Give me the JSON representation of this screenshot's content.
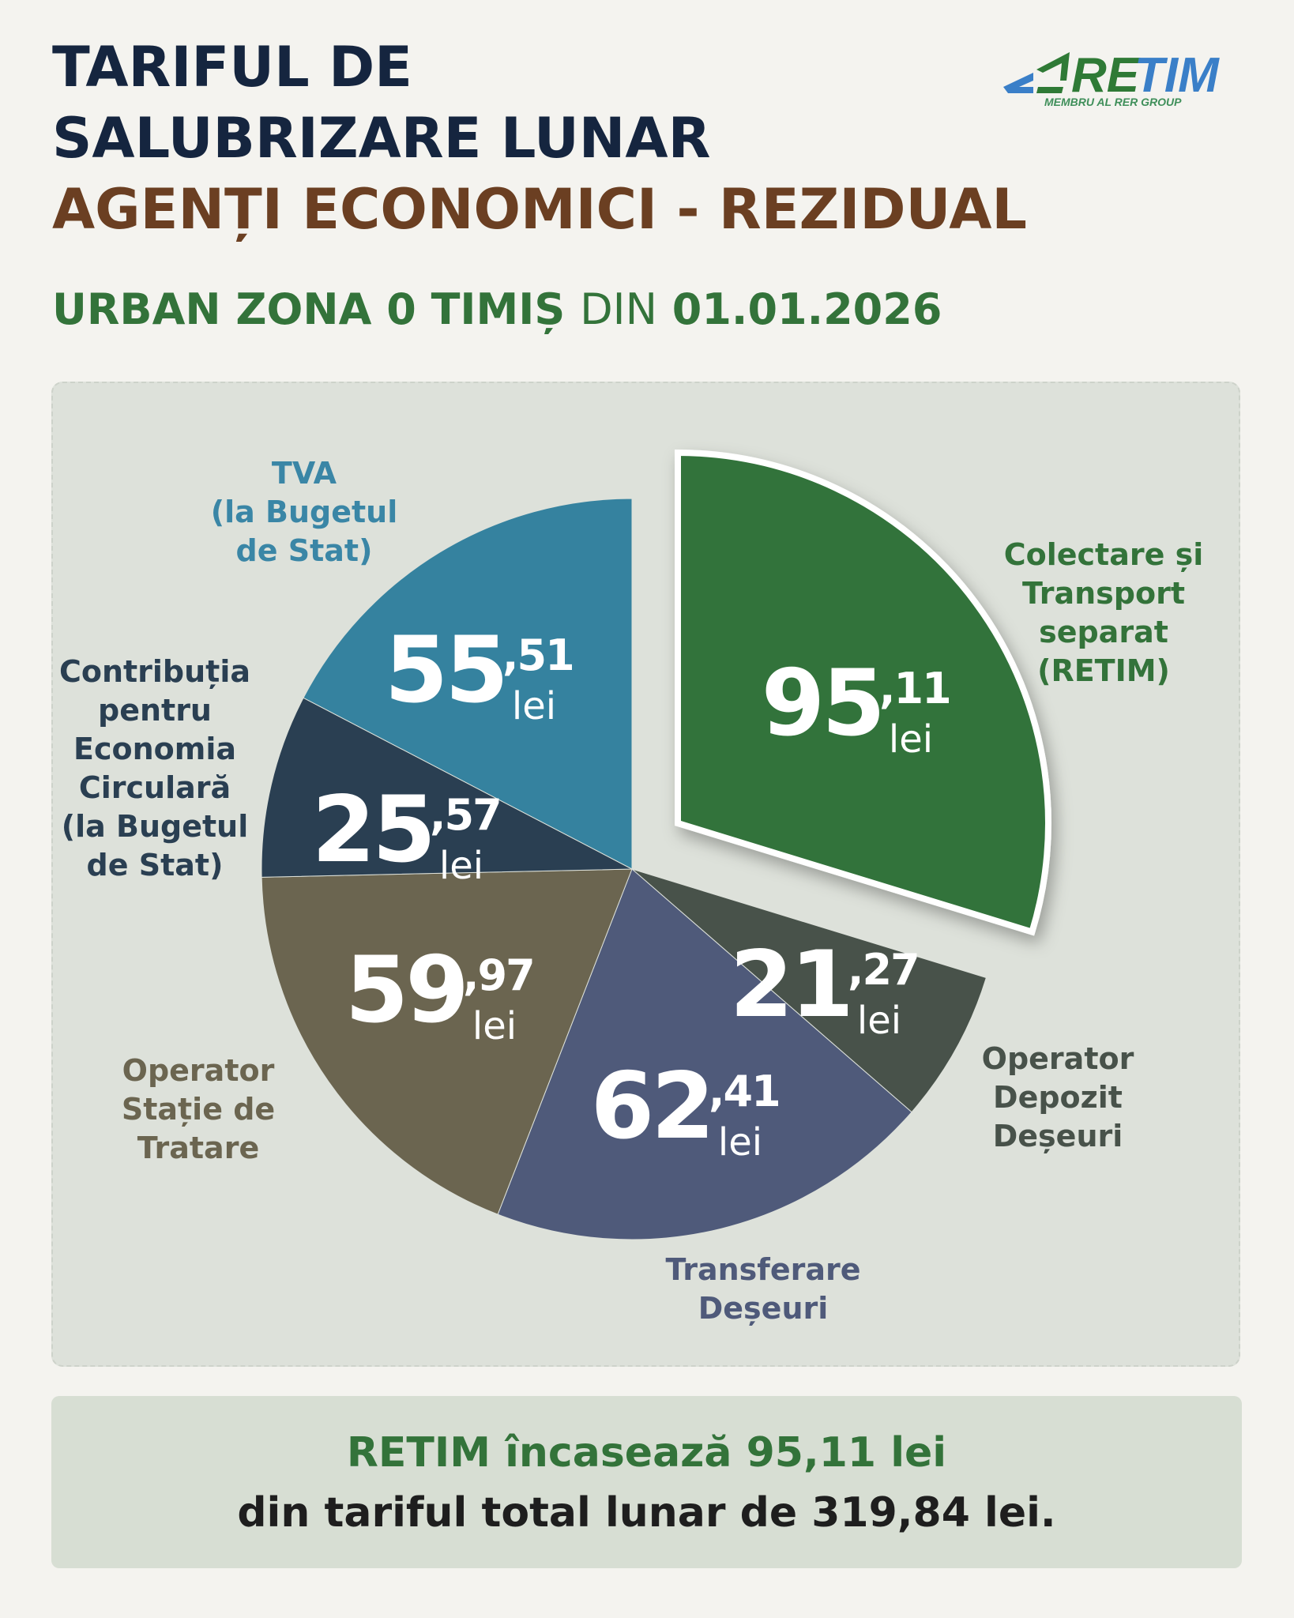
{
  "header": {
    "title_line1": "TARIFUL DE",
    "title_line2": "SALUBRIZARE LUNAR",
    "title_line3": "AGENȚI ECONOMICI - REZIDUAL",
    "subtitle_part1": "URBAN ZONA 0 TIMIȘ",
    "subtitle_part2": "DIN",
    "subtitle_part3": "01.01.2026"
  },
  "logo": {
    "name": "RETIM",
    "tagline": "MEMBRU AL RER GROUP",
    "colors": {
      "green": "#2f7a36",
      "blue": "#3a7fc8"
    }
  },
  "chart_data": {
    "type": "pie",
    "unit": "lei",
    "exploded": "Colectare și Transport separat (RETIM)",
    "slices": [
      {
        "label_lines": [
          "Colectare și",
          "Transport",
          "separat",
          "(RETIM)"
        ],
        "integer": "95",
        "decimals": ",11",
        "unit": "lei",
        "value": 95.11,
        "color": "#33733a",
        "label_color": "#33733a"
      },
      {
        "label_lines": [
          "Operator",
          "Depozit",
          "Deșeuri"
        ],
        "integer": "21",
        "decimals": ",27",
        "unit": "lei",
        "value": 21.27,
        "color": "#48524a",
        "label_color": "#48524a"
      },
      {
        "label_lines": [
          "Transferare",
          "Deșeuri"
        ],
        "integer": "62",
        "decimals": ",41",
        "unit": "lei",
        "value": 62.41,
        "color": "#4f5a7a",
        "label_color": "#4f5a7a"
      },
      {
        "label_lines": [
          "Operator",
          "Stație de",
          "Tratare"
        ],
        "integer": "59",
        "decimals": ",97",
        "unit": "lei",
        "value": 59.97,
        "color": "#6b6550",
        "label_color": "#6b6550"
      },
      {
        "label_lines": [
          "Contribuția",
          "pentru",
          "Economia",
          "Circulară",
          "(la Bugetul",
          "de Stat)"
        ],
        "integer": "25",
        "decimals": ",57",
        "unit": "lei",
        "value": 25.57,
        "color": "#2a3f52",
        "label_color": "#2a3f52"
      },
      {
        "label_lines": [
          "TVA",
          "(la Bugetul",
          "de Stat)"
        ],
        "integer": "55",
        "decimals": ",51",
        "unit": "lei",
        "value": 55.51,
        "color": "#35829f",
        "label_color": "#3a86a6"
      }
    ]
  },
  "summary": {
    "line1": "RETIM încasează 95,11 lei",
    "line2": "din tariful total lunar de 319,84 lei."
  }
}
